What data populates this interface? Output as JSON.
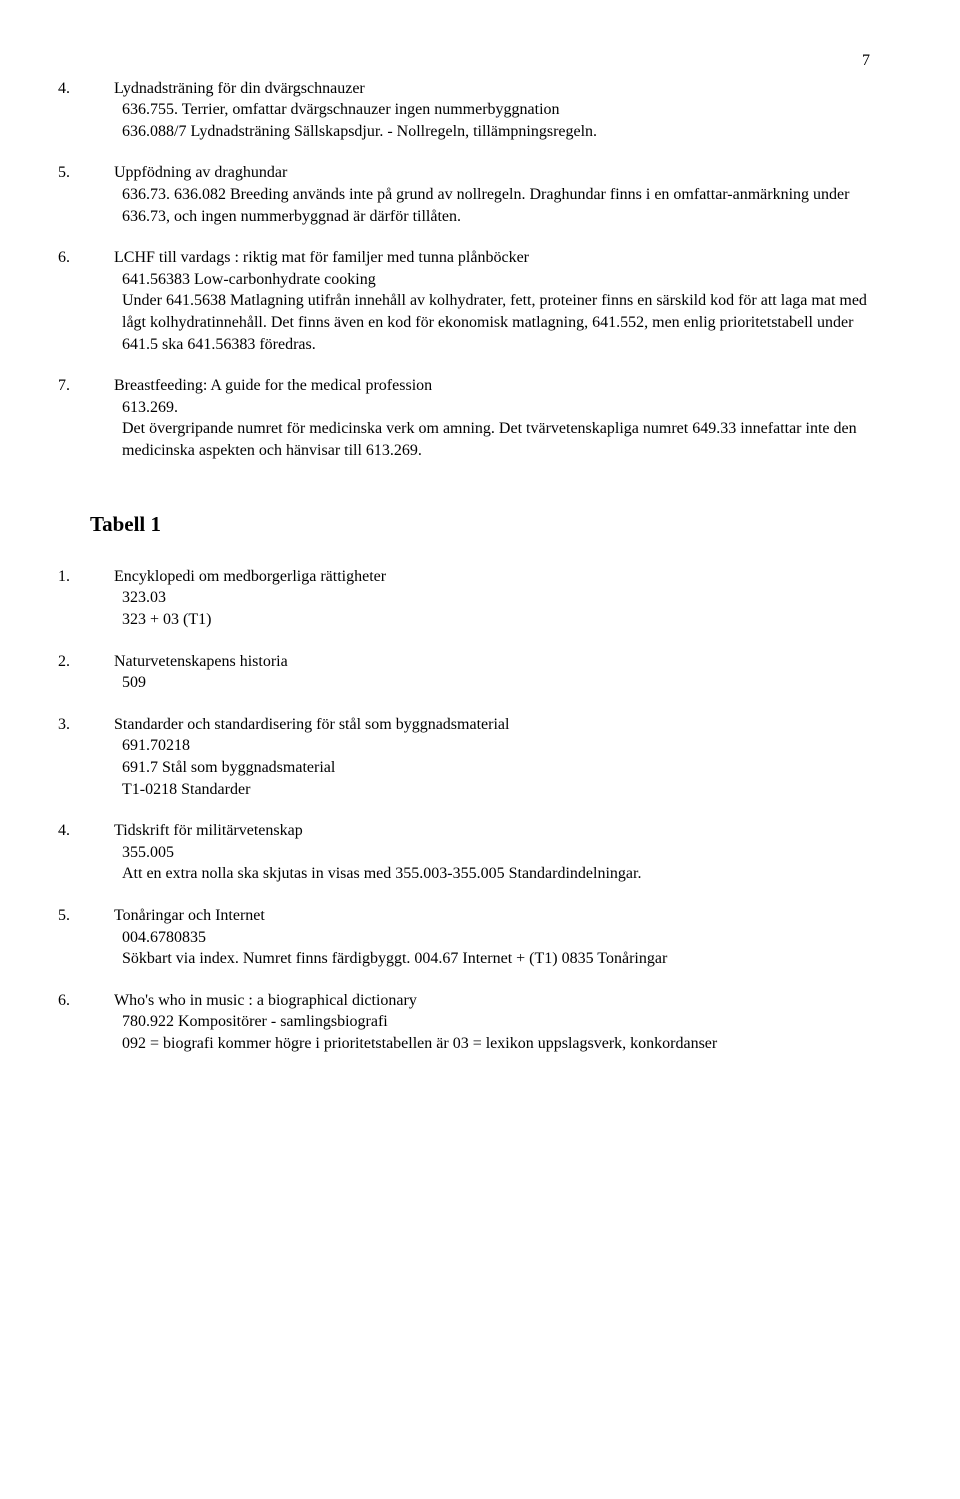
{
  "page_number": "7",
  "list_a": [
    {
      "num": "4.",
      "title": "Lydnadsträning för din dvärgschnauzer",
      "lines": [
        "636.755. Terrier, omfattar dvärgschnauzer ingen nummerbyggnation",
        "636.088/7 Lydnadsträning Sällskapsdjur.  -  Nollregeln, tillämpningsregeln."
      ]
    },
    {
      "num": "5.",
      "title": "Uppfödning av draghundar",
      "lines": [
        "636.73.  636.082 Breeding används inte på grund av nollregeln. Draghundar finns i en omfattar-anmärkning under 636.73, och ingen nummerbyggnad är därför tillåten."
      ]
    },
    {
      "num": "6.",
      "title": "LCHF till vardags : riktig mat för familjer med tunna plånböcker",
      "lines": [
        "641.56383 Low-carbonhydrate cooking",
        "Under 641.5638 Matlagning utifrån innehåll av kolhydrater, fett, proteiner finns en särskild kod för att laga mat med lågt kolhydratinnehåll. Det finns även en kod för ekonomisk matlagning, 641.552, men enlig prioritetstabell under 641.5 ska 641.56383 föredras."
      ]
    },
    {
      "num": "7.",
      "title": "Breastfeeding: A guide for the medical profession",
      "lines": [
        "613.269.",
        "Det övergripande numret för medicinska verk om amning. Det tvärvetenskapliga numret 649.33 innefattar inte den medicinska aspekten och hänvisar till 613.269."
      ]
    }
  ],
  "section_heading": "Tabell 1",
  "list_b": [
    {
      "num": "1.",
      "title": "Encyklopedi om medborgerliga rättigheter",
      "lines": [
        "323.03",
        "323 + 03 (T1)"
      ]
    },
    {
      "num": "2.",
      "title": "Naturvetenskapens historia",
      "lines": [
        "509"
      ]
    },
    {
      "num": "3.",
      "title": "Standarder och standardisering för stål som byggnadsmaterial",
      "lines": [
        "691.70218",
        "691.7 Stål som byggnadsmaterial",
        "T1-0218 Standarder"
      ]
    },
    {
      "num": "4.",
      "title": "Tidskrift för militärvetenskap",
      "lines": [
        "355.005",
        "Att en extra nolla ska skjutas in visas med 355.003-355.005 Standardindelningar."
      ]
    },
    {
      "num": "5.",
      "title": "Tonåringar och Internet",
      "lines": [
        "004.6780835",
        "Sökbart via index. Numret finns färdigbyggt. 004.67 Internet + (T1) 0835 Tonåringar"
      ]
    },
    {
      "num": "6.",
      "title": "Who's who in music : a biographical dictionary",
      "lines": [
        "780.922 Kompositörer - samlingsbiografi",
        "092 = biografi kommer högre i prioritetstabellen är 03 = lexikon uppslagsverk, konkordanser"
      ]
    }
  ]
}
